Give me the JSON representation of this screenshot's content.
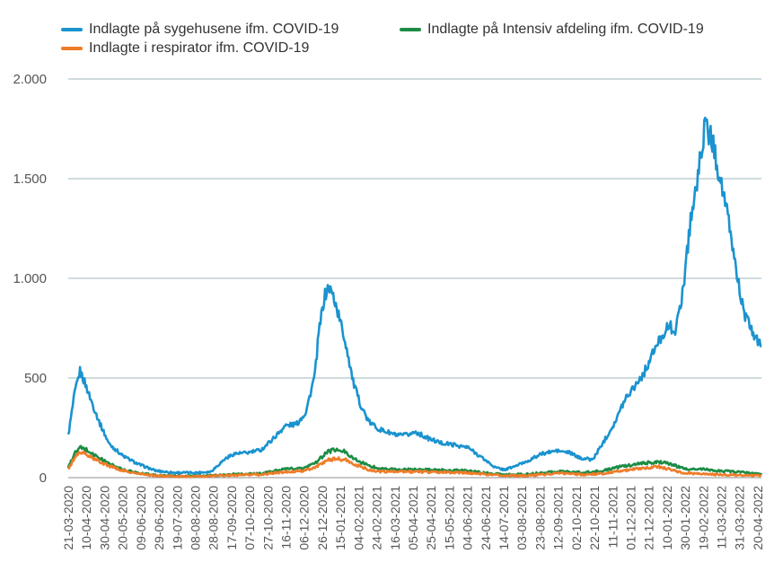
{
  "chart_data": {
    "type": "line",
    "title": "",
    "xlabel": "",
    "ylabel": "",
    "ylim": [
      0,
      2000
    ],
    "y_ticks": [
      0,
      500,
      1000,
      1500,
      2000
    ],
    "y_tick_labels": [
      "0",
      "500",
      "1.000",
      "1.500",
      "2.000"
    ],
    "grid": "horizontal",
    "legend_position": "top",
    "x_tick_labels": [
      "21-03-2020",
      "10-04-2020",
      "30-04-2020",
      "20-05-2020",
      "09-06-2020",
      "29-06-2020",
      "19-07-2020",
      "08-08-2020",
      "28-08-2020",
      "17-09-2020",
      "07-10-2020",
      "27-10-2020",
      "16-11-2020",
      "06-12-2020",
      "26-12-2020",
      "15-01-2021",
      "04-02-2021",
      "24-02-2021",
      "16-03-2021",
      "05-04-2021",
      "25-04-2021",
      "15-05-2021",
      "04-06-2021",
      "24-06-2021",
      "14-07-2021",
      "03-08-2021",
      "23-08-2021",
      "12-09-2021",
      "02-10-2021",
      "22-10-2021",
      "11-11-2021",
      "01-12-2021",
      "21-12-2021",
      "10-01-2022",
      "30-01-2022",
      "19-02-2022",
      "11-03-2022",
      "31-03-2022",
      "20-04-2022"
    ],
    "series": [
      {
        "name": "Indlagte på sygehusene ifm. COVID-19",
        "color": "#1a93cf",
        "points": [
          [
            "21-03-2020",
            210
          ],
          [
            "28-03-2020",
            420
          ],
          [
            "03-04-2020",
            535
          ],
          [
            "08-04-2020",
            480
          ],
          [
            "15-04-2020",
            390
          ],
          [
            "25-04-2020",
            270
          ],
          [
            "05-05-2020",
            170
          ],
          [
            "20-05-2020",
            110
          ],
          [
            "05-06-2020",
            70
          ],
          [
            "25-06-2020",
            35
          ],
          [
            "15-07-2020",
            25
          ],
          [
            "10-08-2020",
            25
          ],
          [
            "25-08-2020",
            30
          ],
          [
            "10-09-2020",
            95
          ],
          [
            "20-09-2020",
            120
          ],
          [
            "05-10-2020",
            125
          ],
          [
            "20-10-2020",
            140
          ],
          [
            "05-11-2020",
            210
          ],
          [
            "15-11-2020",
            260
          ],
          [
            "28-11-2020",
            270
          ],
          [
            "08-12-2020",
            330
          ],
          [
            "18-12-2020",
            520
          ],
          [
            "22-12-2020",
            720
          ],
          [
            "28-12-2020",
            900
          ],
          [
            "02-01-2021",
            960
          ],
          [
            "08-01-2021",
            900
          ],
          [
            "15-01-2021",
            780
          ],
          [
            "22-01-2021",
            650
          ],
          [
            "29-01-2021",
            480
          ],
          [
            "05-02-2021",
            380
          ],
          [
            "15-02-2021",
            280
          ],
          [
            "28-02-2021",
            240
          ],
          [
            "10-03-2021",
            225
          ],
          [
            "20-03-2021",
            210
          ],
          [
            "30-03-2021",
            215
          ],
          [
            "08-04-2021",
            230
          ],
          [
            "20-04-2021",
            200
          ],
          [
            "05-05-2021",
            175
          ],
          [
            "20-05-2021",
            165
          ],
          [
            "05-06-2021",
            150
          ],
          [
            "20-06-2021",
            100
          ],
          [
            "05-07-2021",
            50
          ],
          [
            "15-07-2021",
            40
          ],
          [
            "25-07-2021",
            55
          ],
          [
            "10-08-2021",
            85
          ],
          [
            "25-08-2021",
            120
          ],
          [
            "10-09-2021",
            135
          ],
          [
            "25-09-2021",
            125
          ],
          [
            "05-10-2021",
            100
          ],
          [
            "20-10-2021",
            90
          ],
          [
            "01-11-2021",
            180
          ],
          [
            "15-11-2021",
            290
          ],
          [
            "25-11-2021",
            400
          ],
          [
            "05-12-2021",
            460
          ],
          [
            "15-12-2021",
            520
          ],
          [
            "25-12-2021",
            620
          ],
          [
            "05-01-2022",
            720
          ],
          [
            "12-01-2022",
            760
          ],
          [
            "20-01-2022",
            740
          ],
          [
            "28-01-2022",
            960
          ],
          [
            "05-02-2022",
            1300
          ],
          [
            "13-02-2022",
            1500
          ],
          [
            "18-02-2022",
            1700
          ],
          [
            "22-02-2022",
            1760
          ],
          [
            "28-02-2022",
            1700
          ],
          [
            "05-03-2022",
            1600
          ],
          [
            "12-03-2022",
            1450
          ],
          [
            "20-03-2022",
            1250
          ],
          [
            "28-03-2022",
            1020
          ],
          [
            "05-04-2022",
            820
          ],
          [
            "12-04-2022",
            750
          ],
          [
            "18-04-2022",
            700
          ],
          [
            "24-04-2022",
            650
          ]
        ]
      },
      {
        "name": "Indlagte på Intensiv afdeling ifm. COVID-19",
        "color": "#1c8c45",
        "points": [
          [
            "21-03-2020",
            50
          ],
          [
            "28-03-2020",
            120
          ],
          [
            "03-04-2020",
            150
          ],
          [
            "10-04-2020",
            140
          ],
          [
            "20-04-2020",
            110
          ],
          [
            "05-05-2020",
            70
          ],
          [
            "20-05-2020",
            40
          ],
          [
            "05-06-2020",
            25
          ],
          [
            "25-06-2020",
            12
          ],
          [
            "15-07-2020",
            8
          ],
          [
            "10-08-2020",
            8
          ],
          [
            "25-08-2020",
            10
          ],
          [
            "10-09-2020",
            15
          ],
          [
            "01-10-2020",
            18
          ],
          [
            "20-10-2020",
            20
          ],
          [
            "05-11-2020",
            35
          ],
          [
            "20-11-2020",
            45
          ],
          [
            "05-12-2020",
            45
          ],
          [
            "20-12-2020",
            80
          ],
          [
            "01-01-2021",
            130
          ],
          [
            "10-01-2021",
            140
          ],
          [
            "20-01-2021",
            130
          ],
          [
            "01-02-2021",
            90
          ],
          [
            "15-02-2021",
            60
          ],
          [
            "01-03-2021",
            45
          ],
          [
            "20-03-2021",
            40
          ],
          [
            "10-04-2021",
            40
          ],
          [
            "01-05-2021",
            38
          ],
          [
            "01-06-2021",
            35
          ],
          [
            "01-07-2021",
            20
          ],
          [
            "15-07-2021",
            15
          ],
          [
            "10-08-2021",
            18
          ],
          [
            "05-09-2021",
            30
          ],
          [
            "20-09-2021",
            30
          ],
          [
            "10-10-2021",
            25
          ],
          [
            "01-11-2021",
            35
          ],
          [
            "20-11-2021",
            55
          ],
          [
            "10-12-2021",
            70
          ],
          [
            "01-01-2022",
            80
          ],
          [
            "10-01-2022",
            75
          ],
          [
            "25-01-2022",
            50
          ],
          [
            "10-02-2022",
            40
          ],
          [
            "20-02-2022",
            45
          ],
          [
            "05-03-2022",
            35
          ],
          [
            "25-03-2022",
            30
          ],
          [
            "24-04-2022",
            20
          ]
        ]
      },
      {
        "name": "Indlagte i respirator ifm. COVID-19",
        "color": "#ef7c29",
        "points": [
          [
            "21-03-2020",
            40
          ],
          [
            "28-03-2020",
            100
          ],
          [
            "03-04-2020",
            130
          ],
          [
            "10-04-2020",
            115
          ],
          [
            "20-04-2020",
            90
          ],
          [
            "05-05-2020",
            60
          ],
          [
            "20-05-2020",
            35
          ],
          [
            "05-06-2020",
            20
          ],
          [
            "25-06-2020",
            10
          ],
          [
            "15-07-2020",
            6
          ],
          [
            "10-08-2020",
            6
          ],
          [
            "25-08-2020",
            8
          ],
          [
            "10-09-2020",
            12
          ],
          [
            "01-10-2020",
            14
          ],
          [
            "20-10-2020",
            15
          ],
          [
            "05-11-2020",
            25
          ],
          [
            "20-11-2020",
            30
          ],
          [
            "05-12-2020",
            35
          ],
          [
            "20-12-2020",
            55
          ],
          [
            "01-01-2021",
            90
          ],
          [
            "10-01-2021",
            95
          ],
          [
            "20-01-2021",
            90
          ],
          [
            "01-02-2021",
            65
          ],
          [
            "15-02-2021",
            40
          ],
          [
            "01-03-2021",
            30
          ],
          [
            "20-03-2021",
            30
          ],
          [
            "10-04-2021",
            30
          ],
          [
            "01-05-2021",
            28
          ],
          [
            "01-06-2021",
            25
          ],
          [
            "01-07-2021",
            15
          ],
          [
            "15-07-2021",
            10
          ],
          [
            "10-08-2021",
            10
          ],
          [
            "05-09-2021",
            20
          ],
          [
            "20-09-2021",
            22
          ],
          [
            "10-10-2021",
            15
          ],
          [
            "01-11-2021",
            20
          ],
          [
            "20-11-2021",
            35
          ],
          [
            "10-12-2021",
            45
          ],
          [
            "01-01-2022",
            55
          ],
          [
            "10-01-2022",
            45
          ],
          [
            "25-01-2022",
            25
          ],
          [
            "10-02-2022",
            20
          ],
          [
            "20-02-2022",
            20
          ],
          [
            "05-03-2022",
            15
          ],
          [
            "25-03-2022",
            12
          ],
          [
            "24-04-2022",
            10
          ]
        ]
      }
    ]
  }
}
